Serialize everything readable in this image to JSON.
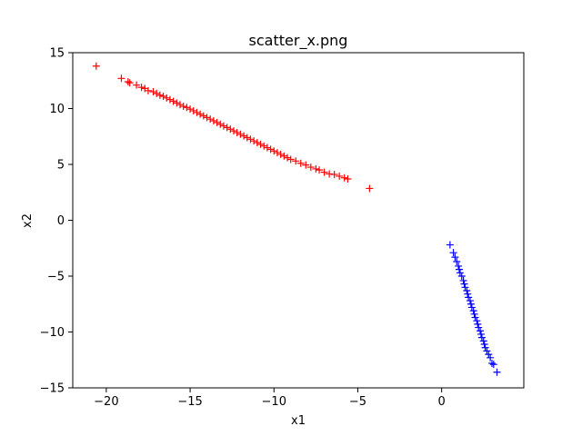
{
  "chart_data": {
    "type": "scatter",
    "title": "scatter_x.png",
    "xlabel": "x1",
    "ylabel": "x2",
    "xlim": [
      -22,
      4.9
    ],
    "ylim": [
      -15,
      15
    ],
    "xticks": [
      {
        "value": -20,
        "label": "−20"
      },
      {
        "value": -15,
        "label": "−15"
      },
      {
        "value": -10,
        "label": "−10"
      },
      {
        "value": -5,
        "label": "−5"
      },
      {
        "value": 0,
        "label": "0"
      }
    ],
    "yticks": [
      {
        "value": 15,
        "label": "15"
      },
      {
        "value": 10,
        "label": "10"
      },
      {
        "value": 5,
        "label": "5"
      },
      {
        "value": 0,
        "label": "0"
      },
      {
        "value": -5,
        "label": "−5"
      },
      {
        "value": -10,
        "label": "−10"
      },
      {
        "value": -15,
        "label": "−15"
      }
    ],
    "grid": false,
    "marker": "+",
    "series": [
      {
        "color": "#ff0000",
        "points": [
          [
            -20.6,
            13.8
          ],
          [
            -19.1,
            12.7
          ],
          [
            -18.7,
            12.4
          ],
          [
            -18.6,
            12.3
          ],
          [
            -18.2,
            12.1
          ],
          [
            -17.9,
            11.9
          ],
          [
            -17.7,
            11.8
          ],
          [
            -17.5,
            11.6
          ],
          [
            -17.2,
            11.5
          ],
          [
            -17.0,
            11.35
          ],
          [
            -16.8,
            11.2
          ],
          [
            -16.6,
            11.1
          ],
          [
            -16.4,
            10.95
          ],
          [
            -16.2,
            10.8
          ],
          [
            -16.0,
            10.65
          ],
          [
            -15.8,
            10.5
          ],
          [
            -15.6,
            10.35
          ],
          [
            -15.4,
            10.2
          ],
          [
            -15.2,
            10.1
          ],
          [
            -15.0,
            9.95
          ],
          [
            -14.8,
            9.8
          ],
          [
            -14.6,
            9.65
          ],
          [
            -14.4,
            9.5
          ],
          [
            -14.2,
            9.35
          ],
          [
            -14.0,
            9.2
          ],
          [
            -13.8,
            9.05
          ],
          [
            -13.6,
            8.9
          ],
          [
            -13.4,
            8.75
          ],
          [
            -13.2,
            8.6
          ],
          [
            -13.0,
            8.45
          ],
          [
            -12.8,
            8.3
          ],
          [
            -12.6,
            8.15
          ],
          [
            -12.4,
            8.0
          ],
          [
            -12.2,
            7.85
          ],
          [
            -12.0,
            7.7
          ],
          [
            -11.8,
            7.55
          ],
          [
            -11.6,
            7.4
          ],
          [
            -11.4,
            7.25
          ],
          [
            -11.2,
            7.1
          ],
          [
            -11.0,
            6.95
          ],
          [
            -10.8,
            6.8
          ],
          [
            -10.6,
            6.65
          ],
          [
            -10.4,
            6.5
          ],
          [
            -10.2,
            6.35
          ],
          [
            -10.0,
            6.2
          ],
          [
            -9.8,
            6.05
          ],
          [
            -9.6,
            5.9
          ],
          [
            -9.4,
            5.75
          ],
          [
            -9.2,
            5.6
          ],
          [
            -9.0,
            5.45
          ],
          [
            -8.7,
            5.3
          ],
          [
            -8.4,
            5.1
          ],
          [
            -8.1,
            4.95
          ],
          [
            -7.8,
            4.75
          ],
          [
            -7.5,
            4.6
          ],
          [
            -7.3,
            4.5
          ],
          [
            -7.0,
            4.3
          ],
          [
            -6.7,
            4.15
          ],
          [
            -6.4,
            4.1
          ],
          [
            -6.1,
            3.95
          ],
          [
            -5.8,
            3.8
          ],
          [
            -5.6,
            3.7
          ],
          [
            -4.3,
            2.85
          ]
        ]
      },
      {
        "color": "#0000ff",
        "points": [
          [
            0.5,
            -2.2
          ],
          [
            0.7,
            -2.9
          ],
          [
            0.8,
            -3.3
          ],
          [
            0.9,
            -3.7
          ],
          [
            1.0,
            -4.1
          ],
          [
            1.05,
            -4.4
          ],
          [
            1.1,
            -4.7
          ],
          [
            1.2,
            -5.0
          ],
          [
            1.3,
            -5.4
          ],
          [
            1.35,
            -5.7
          ],
          [
            1.4,
            -6.0
          ],
          [
            1.5,
            -6.3
          ],
          [
            1.55,
            -6.6
          ],
          [
            1.6,
            -6.9
          ],
          [
            1.7,
            -7.2
          ],
          [
            1.75,
            -7.5
          ],
          [
            1.8,
            -7.8
          ],
          [
            1.9,
            -8.1
          ],
          [
            1.95,
            -8.4
          ],
          [
            2.0,
            -8.7
          ],
          [
            2.1,
            -9.0
          ],
          [
            2.15,
            -9.3
          ],
          [
            2.2,
            -9.6
          ],
          [
            2.3,
            -9.9
          ],
          [
            2.35,
            -10.2
          ],
          [
            2.4,
            -10.5
          ],
          [
            2.5,
            -10.8
          ],
          [
            2.55,
            -11.1
          ],
          [
            2.6,
            -11.4
          ],
          [
            2.7,
            -11.7
          ],
          [
            2.8,
            -12.0
          ],
          [
            2.9,
            -12.3
          ],
          [
            3.0,
            -12.8
          ],
          [
            3.1,
            -12.9
          ],
          [
            3.3,
            -13.6
          ]
        ]
      }
    ]
  }
}
